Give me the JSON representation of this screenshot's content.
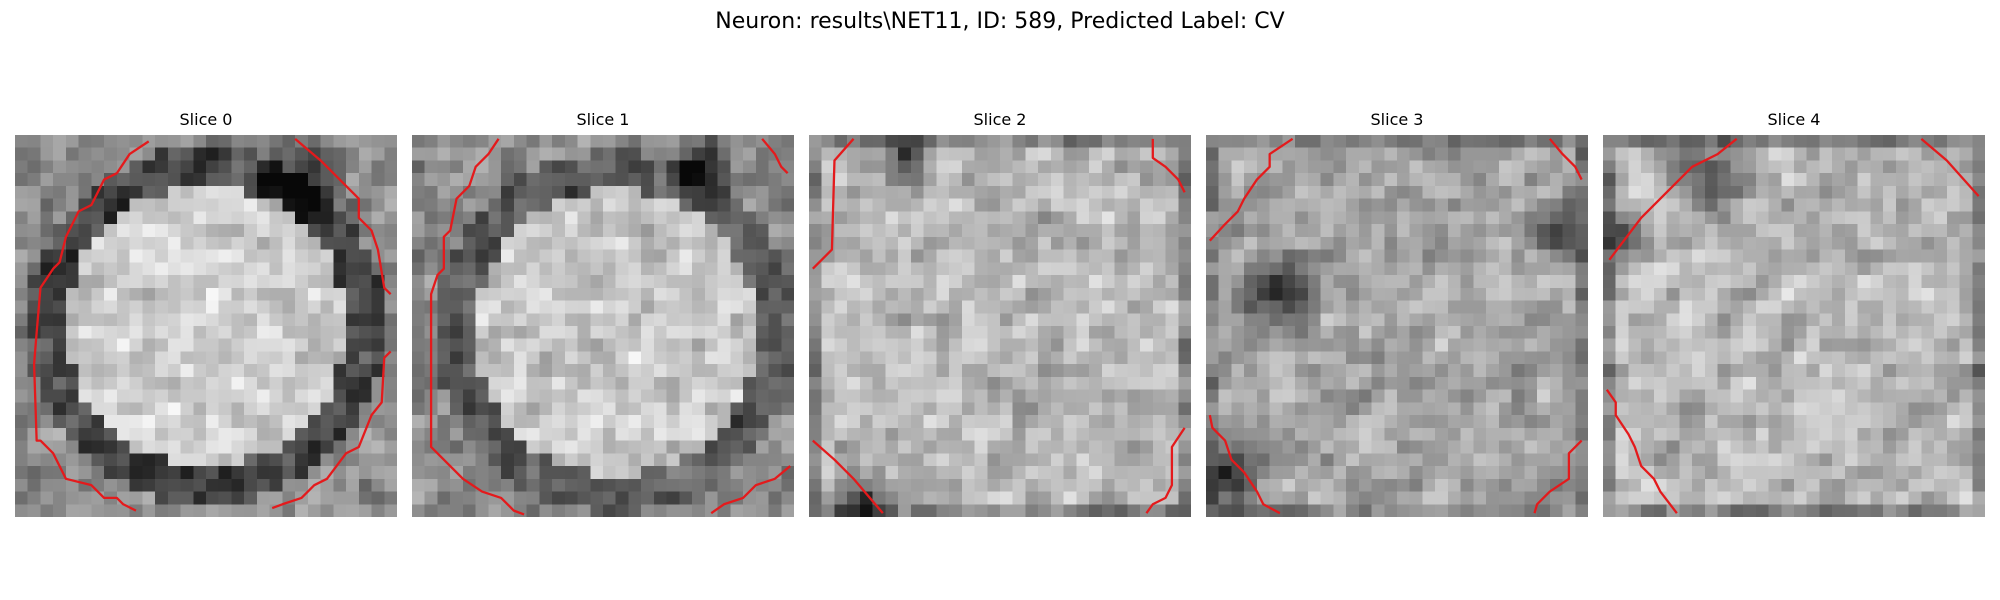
{
  "figure": {
    "title": "Neuron: results\\NET11, ID: 589, Predicted Label: CV"
  },
  "colors": {
    "background": "#ffffff",
    "contour": "#e41a1c",
    "colormap": "grayscale"
  },
  "slices": [
    {
      "title": "Slice 0"
    },
    {
      "title": "Slice 1"
    },
    {
      "title": "Slice 2"
    },
    {
      "title": "Slice 3"
    },
    {
      "title": "Slice 4"
    }
  ]
}
